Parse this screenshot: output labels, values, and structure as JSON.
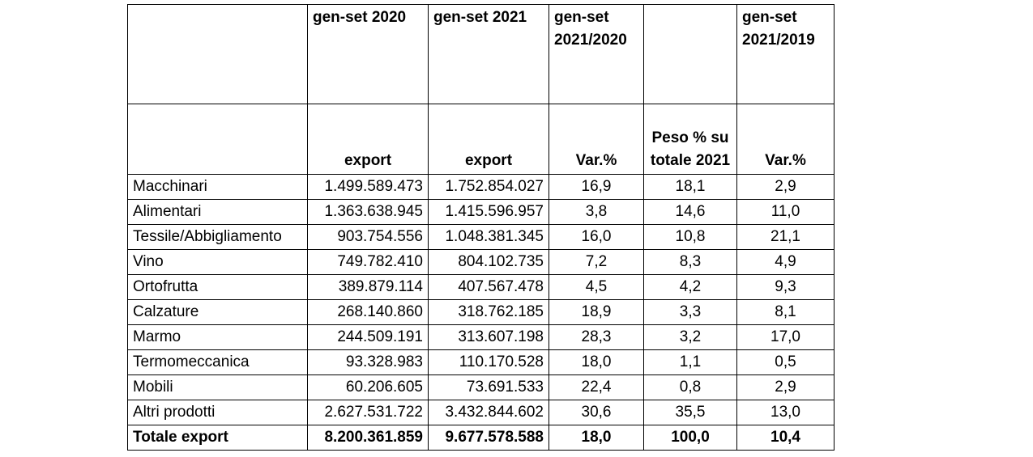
{
  "header_row1": [
    "",
    "gen-set 2020",
    "gen-set 2021",
    "gen-set 2021/2020",
    "",
    "gen-set 2021/2019"
  ],
  "header_row2": [
    "",
    "export",
    "export",
    "Var.%",
    "Peso % su totale 2021",
    "Var.%"
  ],
  "rows": [
    {
      "label": "Macchinari",
      "v2020": "1.499.589.473",
      "v2021": "1.752.854.027",
      "var21_20": "16,9",
      "peso": "18,1",
      "var21_19": "2,9"
    },
    {
      "label": "Alimentari",
      "v2020": "1.363.638.945",
      "v2021": "1.415.596.957",
      "var21_20": "3,8",
      "peso": "14,6",
      "var21_19": "11,0"
    },
    {
      "label": "Tessile/Abbigliamento",
      "v2020": "903.754.556",
      "v2021": "1.048.381.345",
      "var21_20": "16,0",
      "peso": "10,8",
      "var21_19": "21,1"
    },
    {
      "label": "Vino",
      "v2020": "749.782.410",
      "v2021": "804.102.735",
      "var21_20": "7,2",
      "peso": "8,3",
      "var21_19": "4,9"
    },
    {
      "label": "Ortofrutta",
      "v2020": "389.879.114",
      "v2021": "407.567.478",
      "var21_20": "4,5",
      "peso": "4,2",
      "var21_19": "9,3"
    },
    {
      "label": "Calzature",
      "v2020": "268.140.860",
      "v2021": "318.762.185",
      "var21_20": "18,9",
      "peso": "3,3",
      "var21_19": "8,1"
    },
    {
      "label": "Marmo",
      "v2020": "244.509.191",
      "v2021": "313.607.198",
      "var21_20": "28,3",
      "peso": "3,2",
      "var21_19": "17,0"
    },
    {
      "label": "Termomeccanica",
      "v2020": "93.328.983",
      "v2021": "110.170.528",
      "var21_20": "18,0",
      "peso": "1,1",
      "var21_19": "0,5"
    },
    {
      "label": "Mobili",
      "v2020": "60.206.605",
      "v2021": "73.691.533",
      "var21_20": "22,4",
      "peso": "0,8",
      "var21_19": "2,9"
    },
    {
      "label": "Altri prodotti",
      "v2020": "2.627.531.722",
      "v2021": "3.432.844.602",
      "var21_20": "30,6",
      "peso": "35,5",
      "var21_19": "13,0"
    }
  ],
  "total": {
    "label": "Totale export",
    "v2020": "8.200.361.859",
    "v2021": "9.677.578.588",
    "var21_20": "18,0",
    "peso": "100,0",
    "var21_19": "10,4"
  }
}
